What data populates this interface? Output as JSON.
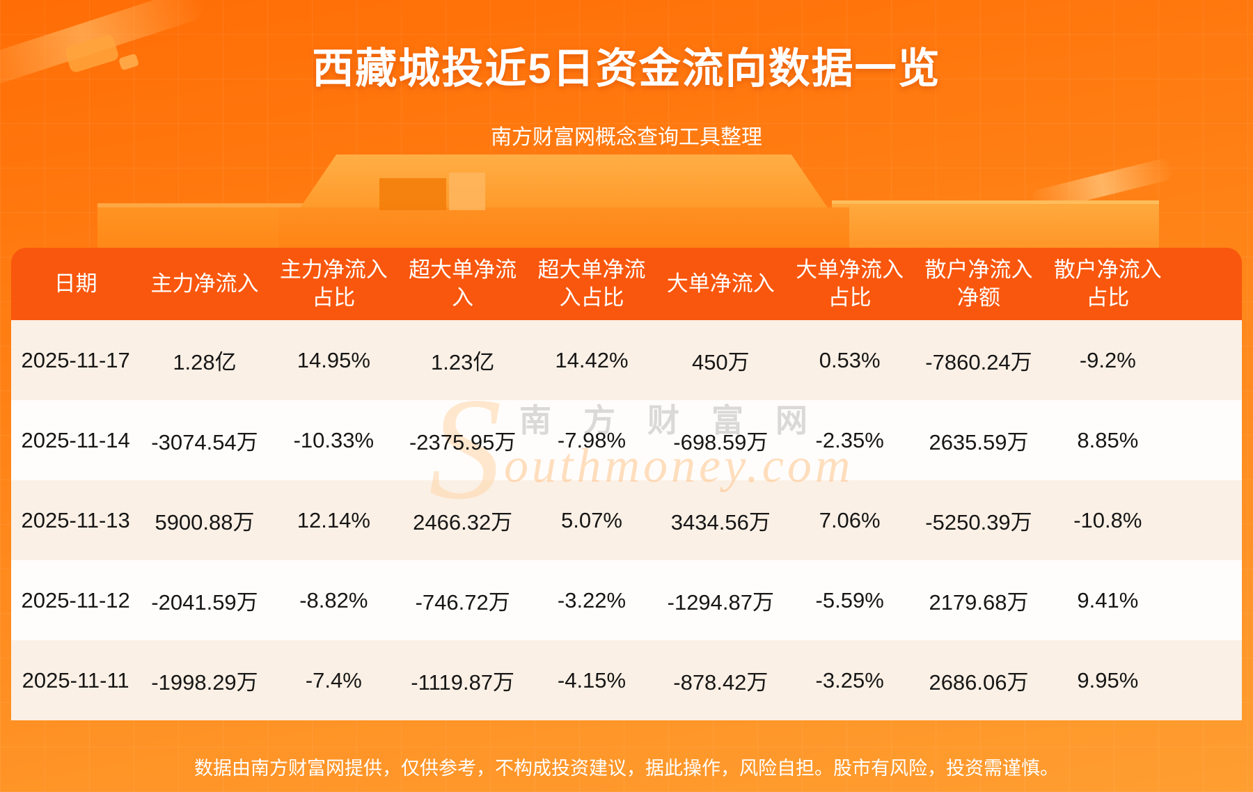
{
  "page": {
    "title": "西藏城投近5日资金流向数据一览",
    "subtitle": "南方财富网概念查询工具整理",
    "footer": "数据由南方财富网提供，仅供参考，不构成投资建议，据此操作，风险自担。股市有风险，投资需谨慎。"
  },
  "watermark": {
    "initial": "S",
    "cn": "南方财富网",
    "en": "outhmoney.com"
  },
  "table": {
    "header_display": [
      "日期",
      "主力净流入",
      "主力净流入\n占比",
      "超大单净流\n入",
      "超大单净流\n入占比",
      "大单净流入",
      "大单净流入\n占比",
      "散户净流入\n净额",
      "散户净流入\n占比"
    ]
  },
  "chart_data": {
    "type": "table",
    "title": "西藏城投近5日资金流向数据一览",
    "columns": [
      "日期",
      "主力净流入",
      "主力净流入占比",
      "超大单净流入",
      "超大单净流入占比",
      "大单净流入",
      "大单净流入占比",
      "散户净流入净额",
      "散户净流入占比"
    ],
    "rows": [
      [
        "2025-11-17",
        "1.28亿",
        "14.95%",
        "1.23亿",
        "14.42%",
        "450万",
        "0.53%",
        "-7860.24万",
        "-9.2%"
      ],
      [
        "2025-11-14",
        "-3074.54万",
        "-10.33%",
        "-2375.95万",
        "-7.98%",
        "-698.59万",
        "-2.35%",
        "2635.59万",
        "8.85%"
      ],
      [
        "2025-11-13",
        "5900.88万",
        "12.14%",
        "2466.32万",
        "5.07%",
        "3434.56万",
        "7.06%",
        "-5250.39万",
        "-10.8%"
      ],
      [
        "2025-11-12",
        "-2041.59万",
        "-8.82%",
        "-746.72万",
        "-3.22%",
        "-1294.87万",
        "-5.59%",
        "2179.68万",
        "9.41%"
      ],
      [
        "2025-11-11",
        "-1998.29万",
        "-7.4%",
        "-1119.87万",
        "-4.15%",
        "-878.42万",
        "-3.25%",
        "2686.06万",
        "9.95%"
      ]
    ]
  },
  "colors": {
    "bg_top": "#ff6d06",
    "bg_mid": "#ff8418",
    "bg_bottom": "#ff9e31",
    "header_bg": "#f9570d",
    "row_cream": "#fbf0e5",
    "row_white": "#fffdfb",
    "text_dark": "#161616",
    "text_light": "#ffffff"
  }
}
